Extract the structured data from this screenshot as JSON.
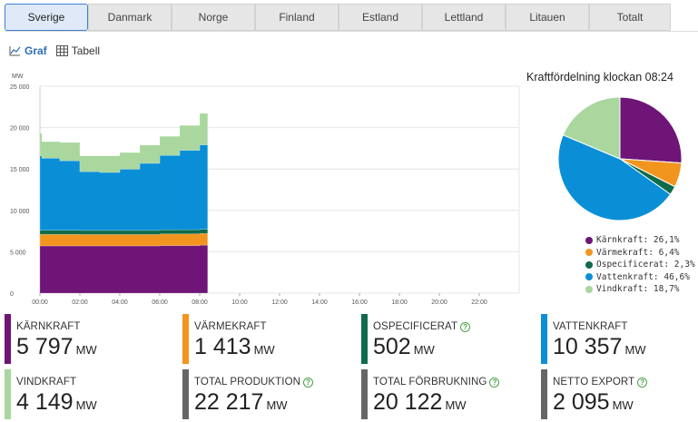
{
  "tabs": [
    {
      "label": "Sverige",
      "active": true
    },
    {
      "label": "Danmark",
      "active": false
    },
    {
      "label": "Norge",
      "active": false
    },
    {
      "label": "Finland",
      "active": false
    },
    {
      "label": "Estland",
      "active": false
    },
    {
      "label": "Lettland",
      "active": false
    },
    {
      "label": "Litauen",
      "active": false
    },
    {
      "label": "Totalt",
      "active": false
    }
  ],
  "view_toggle": {
    "graph_label": "Graf",
    "table_label": "Tabell",
    "active": "graph"
  },
  "pie": {
    "title": "Kraftfördelning klockan 08:24",
    "legend": [
      {
        "label": "Kärnkraft: 26,1%",
        "color": "#6e1577",
        "pct": 26.1
      },
      {
        "label": "Värmekraft: 6,4%",
        "color": "#f2951f",
        "pct": 6.4
      },
      {
        "label": "Ospecificerat: 2,3%",
        "color": "#0f6b49",
        "pct": 2.3
      },
      {
        "label": "Vattenkraft: 46,6%",
        "color": "#0a8fd7",
        "pct": 46.6
      },
      {
        "label": "Vindkraft: 18,7%",
        "color": "#a9d79e",
        "pct": 18.7
      }
    ]
  },
  "chart_data": {
    "type": "area",
    "ylabel": "MW",
    "ylim": [
      0,
      25000
    ],
    "yticks": [
      "0",
      "5 000",
      "10 000",
      "15 000",
      "20 000",
      "25 000"
    ],
    "xticks": [
      "00:00",
      "02:00",
      "04:00",
      "06:00",
      "08:00",
      "10:00",
      "12:00",
      "14:00",
      "16:00",
      "18:00",
      "20:00",
      "22:00"
    ],
    "xlim_hours": [
      0,
      24
    ],
    "x_hours": [
      0,
      0.1,
      1,
      2,
      3,
      4,
      5,
      6,
      7,
      8,
      8.4
    ],
    "series": [
      {
        "name": "Kärnkraft",
        "color": "#6e1577",
        "values": [
          5700,
          5700,
          5700,
          5700,
          5700,
          5700,
          5700,
          5750,
          5750,
          5797,
          5797
        ]
      },
      {
        "name": "Värmekraft",
        "color": "#f2951f",
        "values": [
          1400,
          1400,
          1400,
          1380,
          1380,
          1380,
          1380,
          1400,
          1410,
          1413,
          1413
        ]
      },
      {
        "name": "Ospecificerat",
        "color": "#0f6b49",
        "values": [
          500,
          500,
          500,
          500,
          500,
          500,
          500,
          500,
          500,
          502,
          502
        ]
      },
      {
        "name": "Vattenkraft",
        "color": "#0a8fd7",
        "values": [
          9000,
          8700,
          8400,
          7100,
          7000,
          7400,
          8100,
          9000,
          9600,
          10200,
          10357
        ]
      },
      {
        "name": "Vindkraft",
        "color": "#a9d79e",
        "values": [
          2700,
          2000,
          2200,
          1900,
          2000,
          2000,
          2200,
          2300,
          3000,
          3800,
          4149
        ]
      }
    ]
  },
  "cards": [
    {
      "label": "KÄRNKRAFT",
      "value": "5 797",
      "unit": "MW",
      "color": "#6e1577",
      "help": false
    },
    {
      "label": "VÄRMEKRAFT",
      "value": "1 413",
      "unit": "MW",
      "color": "#f2951f",
      "help": false
    },
    {
      "label": "OSPECIFICERAT",
      "value": "502",
      "unit": "MW",
      "color": "#0f6b49",
      "help": true
    },
    {
      "label": "VATTENKRAFT",
      "value": "10 357",
      "unit": "MW",
      "color": "#0a8fd7",
      "help": false
    },
    {
      "label": "VINDKRAFT",
      "value": "4 149",
      "unit": "MW",
      "color": "#a9d79e",
      "help": false
    },
    {
      "label": "TOTAL PRODUKTION",
      "value": "22 217",
      "unit": "MW",
      "color": "#666666",
      "help": true
    },
    {
      "label": "TOTAL FÖRBRUKNING",
      "value": "20 122",
      "unit": "MW",
      "color": "#666666",
      "help": true
    },
    {
      "label": "NETTO EXPORT",
      "value": "2 095",
      "unit": "MW",
      "color": "#666666",
      "help": true
    }
  ]
}
